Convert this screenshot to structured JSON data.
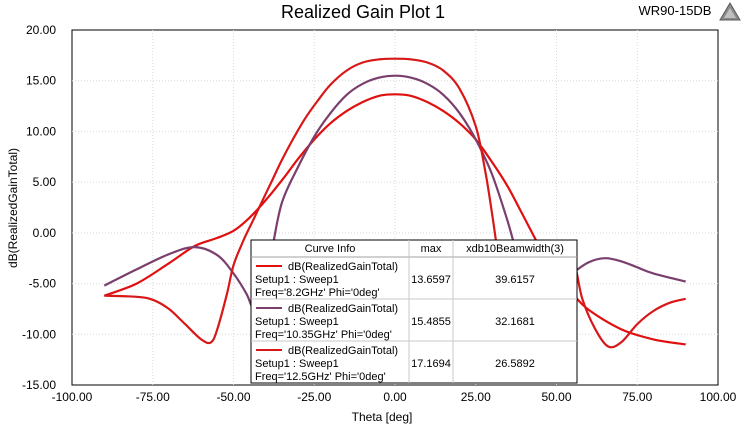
{
  "chart_data": {
    "type": "line",
    "title": "Realized Gain Plot 1",
    "corner_label": "WR90-15DB",
    "xlabel": "Theta [deg]",
    "ylabel": "dB(RealizedGainTotal)",
    "xlim": [
      -100,
      100
    ],
    "ylim": [
      -15,
      20
    ],
    "x_ticks": [
      "-100.00",
      "-75.00",
      "-50.00",
      "-25.00",
      "0.00",
      "25.00",
      "50.00",
      "75.00",
      "100.00"
    ],
    "y_ticks": [
      "20.00",
      "15.00",
      "10.00",
      "5.00",
      "0.00",
      "-5.00",
      "-10.00",
      "-15.00"
    ],
    "grid": true,
    "legend": {
      "placement": "bottom-center",
      "headers": [
        "Curve Info",
        "max",
        "xdb10Beamwidth(3)"
      ],
      "rows": [
        {
          "lines": [
            "dB(RealizedGainTotal)",
            "Setup1 : Sweep1",
            "Freq='8.2GHz' Phi='0deg'"
          ],
          "max": "13.6597",
          "bw": "39.6157",
          "color": "#e01010"
        },
        {
          "lines": [
            "dB(RealizedGainTotal)",
            "Setup1 : Sweep1",
            "Freq='10.35GHz' Phi='0deg'"
          ],
          "max": "15.4855",
          "bw": "32.1681",
          "color": "#7b3f6e"
        },
        {
          "lines": [
            "dB(RealizedGainTotal)",
            "Setup1 : Sweep1",
            "Freq='12.5GHz' Phi='0deg'"
          ],
          "max": "17.1694",
          "bw": "26.5892",
          "color": "#d81818"
        }
      ]
    },
    "series": [
      {
        "color": "#e01010",
        "x": [
          -90,
          -80,
          -70,
          -62,
          -55,
          -50,
          -46,
          -42,
          -38,
          -34,
          -30,
          -25,
          -20,
          -15,
          -10,
          -5,
          0,
          5,
          10,
          15,
          20,
          25,
          30,
          35,
          40,
          45,
          50,
          55,
          60,
          70,
          80,
          90
        ],
        "y": [
          -6.2,
          -5.0,
          -3.0,
          -1.3,
          -0.5,
          0.2,
          1.2,
          2.5,
          4.0,
          5.6,
          7.3,
          9.2,
          10.8,
          12.0,
          12.9,
          13.5,
          13.66,
          13.5,
          12.9,
          12.0,
          10.8,
          9.2,
          7.0,
          4.5,
          1.5,
          -1.5,
          -4.0,
          -6.0,
          -7.6,
          -9.5,
          -10.5,
          -11.0
        ]
      },
      {
        "color": "#7b3f6e",
        "x": [
          -90,
          -80,
          -70,
          -62,
          -55,
          -50,
          -46,
          -44,
          -42,
          -40,
          -38,
          -35,
          -30,
          -25,
          -20,
          -15,
          -10,
          -5,
          0,
          5,
          10,
          15,
          20,
          25,
          30,
          35,
          40,
          45,
          50,
          55,
          60,
          65,
          70,
          75,
          80,
          90
        ],
        "y": [
          -5.2,
          -3.6,
          -2.1,
          -1.4,
          -2.2,
          -4.0,
          -6.0,
          -7.4,
          -7.0,
          -4.5,
          -1.5,
          3.0,
          6.5,
          9.5,
          11.8,
          13.6,
          14.7,
          15.3,
          15.49,
          15.3,
          14.7,
          13.6,
          11.8,
          9.2,
          5.8,
          1.0,
          -4.5,
          -7.2,
          -5.5,
          -4.0,
          -2.9,
          -2.5,
          -2.8,
          -3.4,
          -4.0,
          -4.8
        ]
      },
      {
        "color": "#d81818",
        "x": [
          -90,
          -80,
          -75,
          -70,
          -65,
          -60,
          -57,
          -55,
          -52,
          -50,
          -47,
          -44,
          -41,
          -38,
          -35,
          -32,
          -28,
          -24,
          -20,
          -15,
          -10,
          -5,
          0,
          5,
          10,
          15,
          20,
          25,
          28,
          30,
          32,
          34,
          38,
          42,
          46,
          50,
          55,
          58,
          62,
          66,
          70,
          75,
          80,
          85,
          90
        ],
        "y": [
          -6.2,
          -6.3,
          -6.6,
          -7.5,
          -9.0,
          -10.5,
          -10.8,
          -9.5,
          -6.0,
          -3.2,
          -0.8,
          1.2,
          3.2,
          5.2,
          7.2,
          9.0,
          11.2,
          13.0,
          14.6,
          16.0,
          16.8,
          17.1,
          17.17,
          17.1,
          16.8,
          16.0,
          14.2,
          10.5,
          6.0,
          2.0,
          -2.5,
          -7.0,
          -9.0,
          -6.0,
          -3.0,
          -1.0,
          -2.5,
          -6.5,
          -9.5,
          -11.2,
          -10.8,
          -9.0,
          -7.7,
          -6.9,
          -6.5
        ]
      }
    ]
  }
}
